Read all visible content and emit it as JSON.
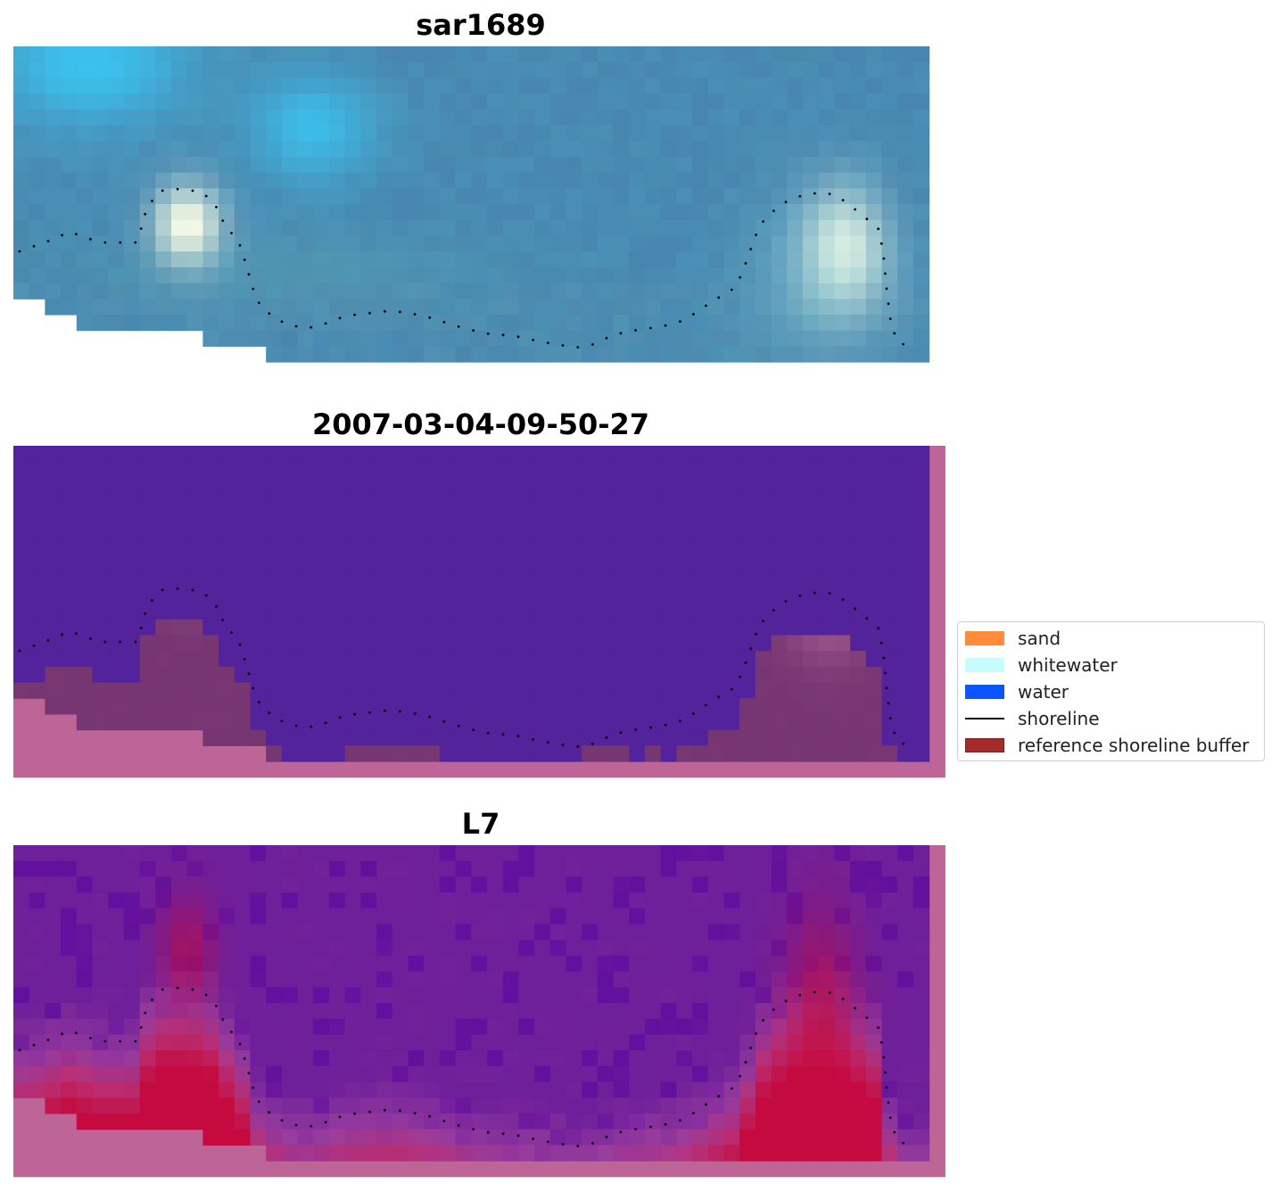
{
  "panels": [
    {
      "title": "sar1689",
      "kind": "rgb"
    },
    {
      "title": "2007-03-04-09-50-27",
      "kind": "classification"
    },
    {
      "title": "L7",
      "kind": "index"
    }
  ],
  "legend": {
    "items": [
      {
        "label": "sand",
        "color": "#ff8c3a",
        "kind": "patch"
      },
      {
        "label": "whitewater",
        "color": "#c8fcfc",
        "kind": "patch"
      },
      {
        "label": "water",
        "color": "#0a55ff",
        "kind": "patch"
      },
      {
        "label": "shoreline",
        "color": "#000000",
        "kind": "line"
      },
      {
        "label": "reference shoreline buffer",
        "color": "#a52a2a",
        "kind": "patch"
      }
    ]
  },
  "colors": {
    "rgb_water": "#4a8fb5",
    "rgb_bright": "#39c8f5",
    "rgb_whitewater": "#f2f8e4",
    "class_water": "#52239a",
    "class_land": "#763671",
    "class_buffer": "#bd6596",
    "index_low": "#6e1f9a",
    "index_high": "#c40a3e"
  }
}
